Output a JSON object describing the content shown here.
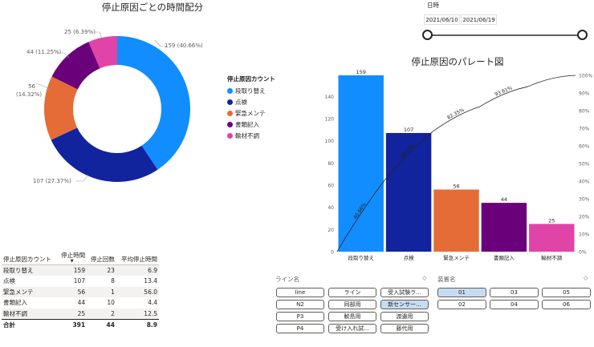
{
  "donut": {
    "title": "停止原因ごとの時間配分",
    "labels": [
      "159 (40.66%)",
      "107 (27.37%)",
      "56",
      "(14.32%)",
      "44 (11.25%)",
      "25 (6.39%)"
    ]
  },
  "legend": {
    "title": "停止原因カウント",
    "items": [
      {
        "label": "段取り替え",
        "color": "#118DFF"
      },
      {
        "label": "点検",
        "color": "#12239E"
      },
      {
        "label": "緊急メンテ",
        "color": "#E66C37"
      },
      {
        "label": "書類記入",
        "color": "#6B007B"
      },
      {
        "label": "輸材不調",
        "color": "#E044A7"
      }
    ]
  },
  "date_slicer": {
    "label": "日時",
    "start": "2021/06/10",
    "end": "2021/06/19"
  },
  "chart_data": {
    "type": "bar",
    "title": "停止原因のパレート図",
    "categories": [
      "段取り替え",
      "点検",
      "緊急メンテ",
      "書類記入",
      "輸材不調"
    ],
    "values": [
      159,
      107,
      56,
      44,
      25
    ],
    "colors": [
      "#118DFF",
      "#12239E",
      "#E66C37",
      "#6B007B",
      "#E044A7"
    ],
    "cumulative_pct": [
      40.66,
      68.03,
      82.35,
      93.61,
      100
    ],
    "cumulative_labels": [
      "40.66%",
      "68.03%",
      "82.35%",
      "93.61%"
    ],
    "ylim": [
      0,
      159
    ],
    "yticks": [
      0,
      20,
      40,
      60,
      80,
      100,
      120,
      140
    ],
    "y2lim": [
      0,
      100
    ],
    "y2ticks": [
      "0%",
      "10%",
      "20%",
      "30%",
      "40%",
      "50%",
      "60%",
      "70%",
      "80%",
      "90%",
      "100%"
    ]
  },
  "table": {
    "headers": [
      "停止原因カウント",
      "停止時間",
      "停止回数",
      "平均停止時間"
    ],
    "rows": [
      [
        "段取り替え",
        "159",
        "23",
        "6.9"
      ],
      [
        "点検",
        "107",
        "8",
        "13.4"
      ],
      [
        "緊急メンテ",
        "56",
        "1",
        "56.0"
      ],
      [
        "書類記入",
        "44",
        "10",
        "4.4"
      ],
      [
        "輸材不調",
        "25",
        "2",
        "12.5"
      ]
    ],
    "total": [
      "合計",
      "391",
      "44",
      "8.9"
    ]
  },
  "line_slicer": {
    "title": "ライン名",
    "items": [
      "line",
      "ライン",
      "受入試験ラ...",
      "N2",
      "同部用",
      "新センサー...",
      "P3",
      "鮫島用",
      "渡邉用",
      "P4",
      "受け入れ試...",
      "藤代用"
    ],
    "selected": [
      "新センサー..."
    ]
  },
  "device_slicer": {
    "title": "装置名",
    "items": [
      "01",
      "03",
      "05",
      "02",
      "04",
      "06"
    ],
    "selected": [
      "01"
    ]
  },
  "eraser_icon": "◇"
}
